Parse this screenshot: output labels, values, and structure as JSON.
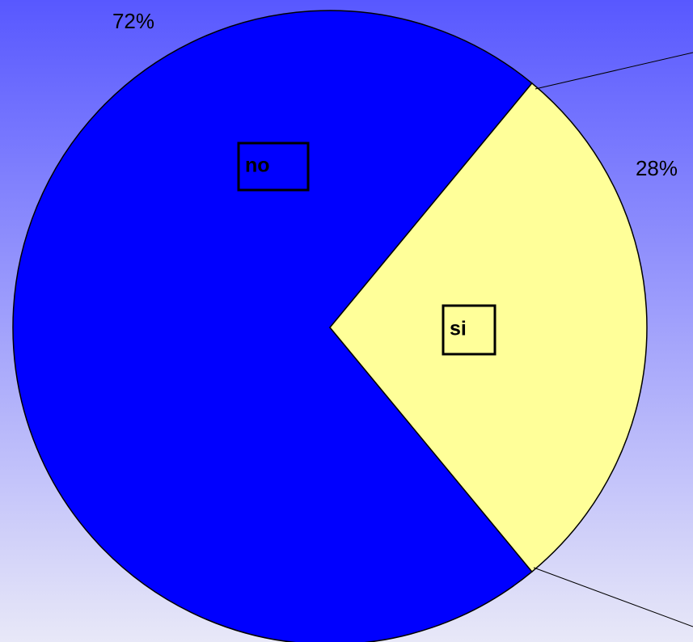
{
  "chart_data": {
    "type": "pie",
    "categories": [
      "no",
      "si"
    ],
    "values": [
      72,
      28
    ],
    "value_labels": [
      "72%",
      "28%"
    ],
    "colors": [
      "#0000ff",
      "#ffff99"
    ]
  }
}
